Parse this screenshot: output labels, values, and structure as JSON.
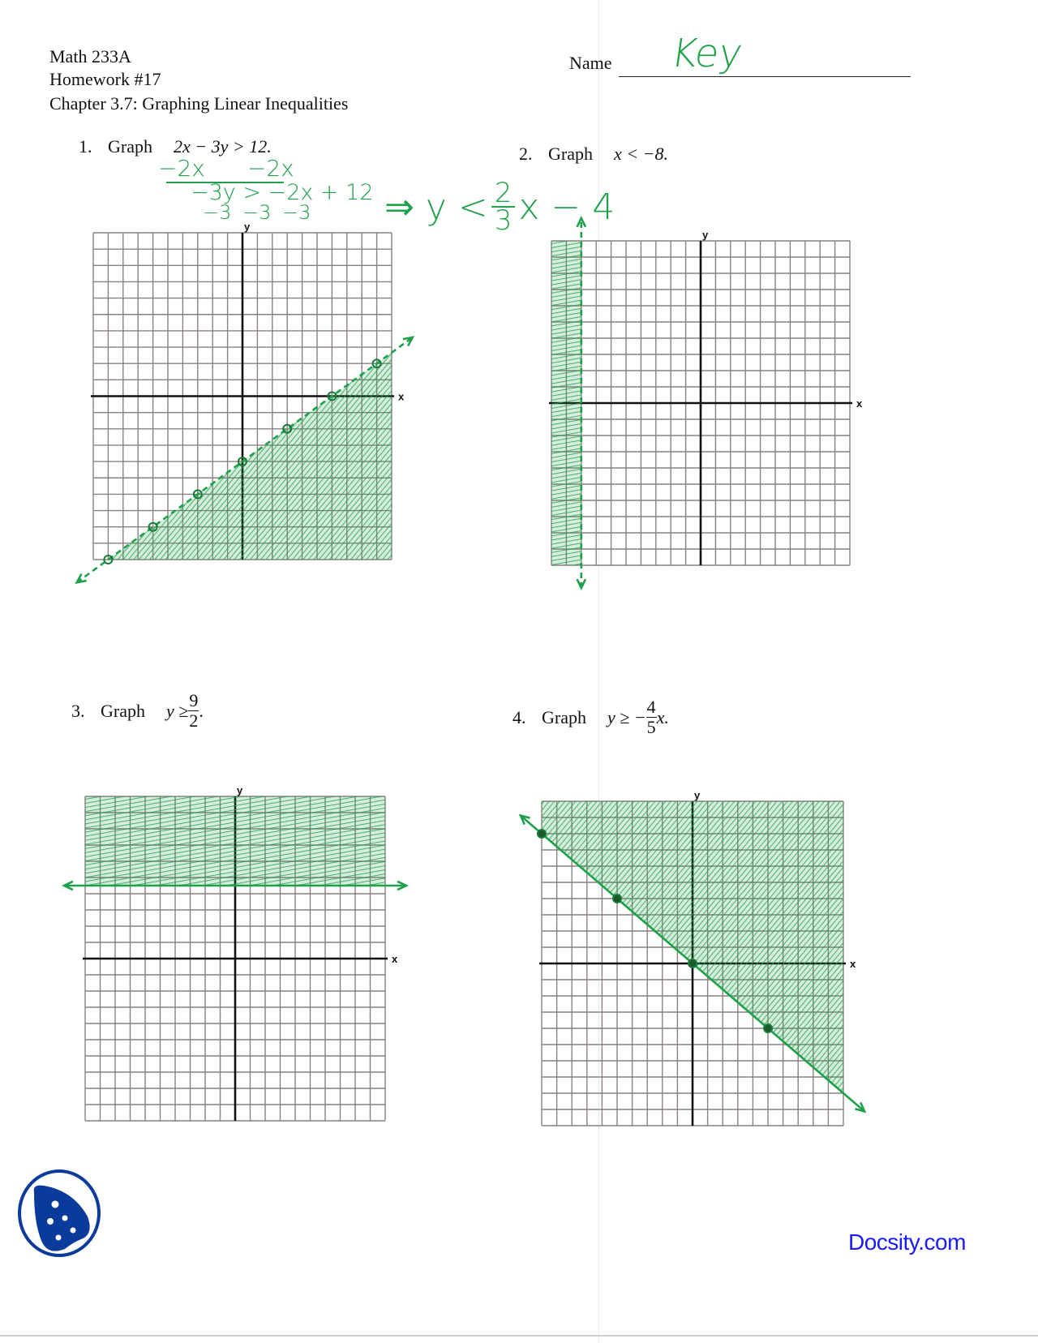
{
  "header": {
    "course": "Math 233A",
    "homework": "Homework #17",
    "chapter": "Chapter 3.7: Graphing Linear Inequalities",
    "name_label": "Name",
    "name_value": "Key"
  },
  "colors": {
    "ink": "#111111",
    "marker": "#1fa04a",
    "grid": "#8a8080",
    "brand": "#1a1aff",
    "logo": "#0a3a9a"
  },
  "problems": [
    {
      "number": "1.",
      "verb": "Graph",
      "inequality": "2x − 3y > 12.",
      "work": {
        "line1_left": "−2x",
        "line1_right": "−2x",
        "line2": "−3y > −2x + 12",
        "line3": "−3   −3   −3",
        "result_prefix": "⇒ y <",
        "result_num": "2",
        "result_den": "3",
        "result_suffix": "x − 4"
      },
      "graph": {
        "x_label": "x",
        "y_label": "y",
        "boundary": {
          "type": "line",
          "slope": 0.6667,
          "intercept": -4
        },
        "line_style": "dashed",
        "shade": "below",
        "points": [
          [
            -9,
            -10
          ],
          [
            -6,
            -8
          ],
          [
            -3,
            -6
          ],
          [
            0,
            -4
          ],
          [
            3,
            -2
          ],
          [
            6,
            0
          ],
          [
            9,
            2
          ]
        ],
        "point_style": "open"
      }
    },
    {
      "number": "2.",
      "verb": "Graph",
      "inequality": "x < −8.",
      "graph": {
        "x_label": "x",
        "y_label": "y",
        "boundary": {
          "type": "vertical",
          "x": -8
        },
        "line_style": "dashed",
        "shade": "left",
        "points": [],
        "point_style": "none"
      }
    },
    {
      "number": "3.",
      "verb": "Graph",
      "inequality_lhs": "y ≥",
      "frac_num": "9",
      "frac_den": "2",
      "inequality_tail": ".",
      "graph": {
        "x_label": "x",
        "y_label": "y",
        "boundary": {
          "type": "horizontal",
          "y": 4.5
        },
        "line_style": "solid",
        "shade": "above",
        "points": [],
        "point_style": "none"
      }
    },
    {
      "number": "4.",
      "verb": "Graph",
      "inequality_lhs": "y ≥ −",
      "frac_num": "4",
      "frac_den": "5",
      "inequality_tail": "x.",
      "graph": {
        "x_label": "x",
        "y_label": "y",
        "boundary": {
          "type": "line",
          "slope": -0.8,
          "intercept": 0
        },
        "line_style": "solid",
        "shade": "above",
        "points": [
          [
            -10,
            8
          ],
          [
            -5,
            4
          ],
          [
            0,
            0
          ],
          [
            5,
            -4
          ]
        ],
        "point_style": "filled"
      }
    }
  ],
  "axes": {
    "x_range": [
      -10,
      10
    ],
    "y_range": [
      -10,
      10
    ],
    "grid_step": 1
  },
  "footer": {
    "brand": "Docsity.com"
  }
}
